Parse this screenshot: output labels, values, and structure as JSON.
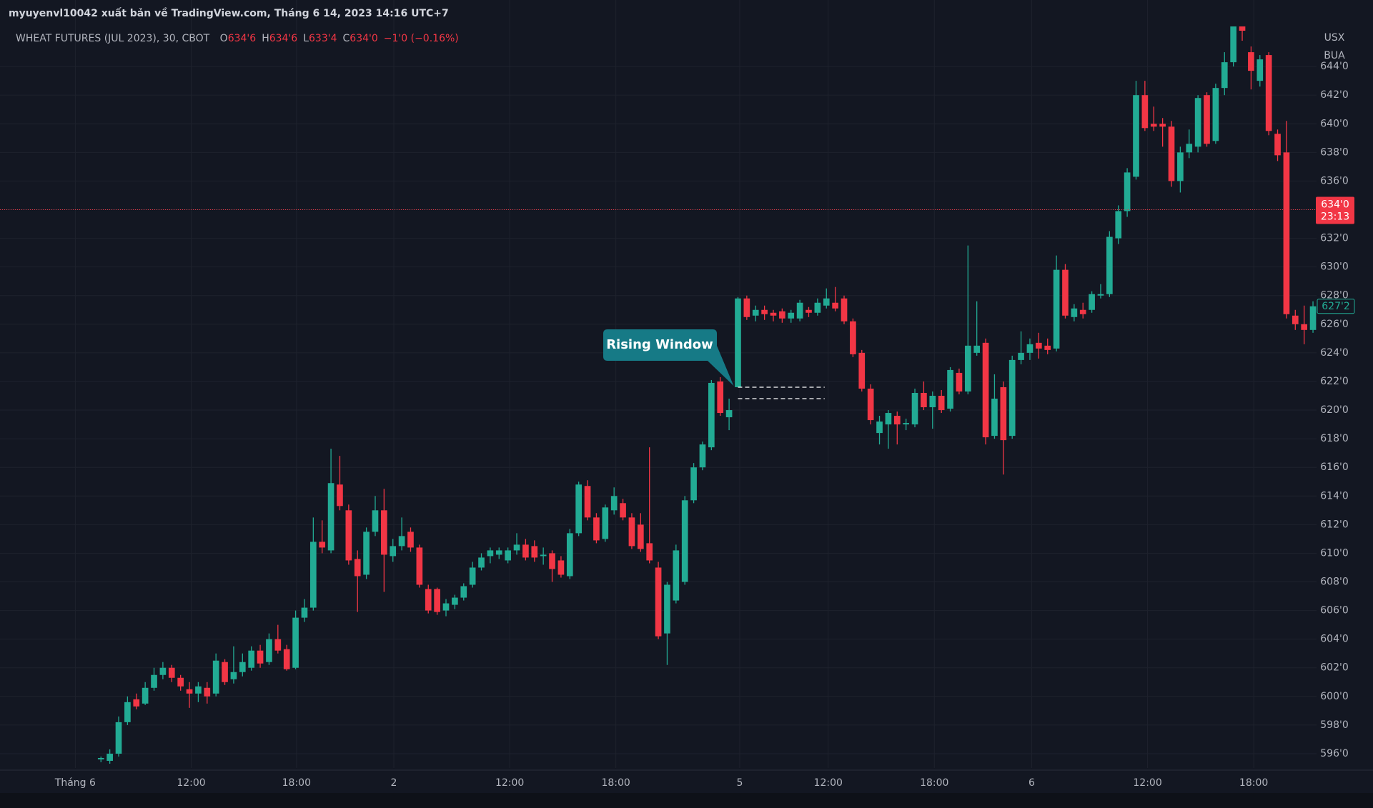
{
  "chart_data": {
    "type": "candlestick",
    "publisher": "myuyenvl10042 xuất bản về TradingView.com, Tháng 6 14, 2023 14:16 UTC+7",
    "title": "WHEAT FUTURES (JUL 2023), 30, CBOT",
    "legend_ohlc": [
      {
        "key": "O",
        "value": "634'6"
      },
      {
        "key": "H",
        "value": "634'6"
      },
      {
        "key": "L",
        "value": "633'4"
      },
      {
        "key": "C",
        "value": "634'0"
      }
    ],
    "change": "−1'0 (−0.16%)",
    "currency": "USX",
    "unit": "BUA",
    "up_color": "#22ab94",
    "down_color": "#f23645",
    "grid": true,
    "xlim": [
      -10.2,
      137.4
    ],
    "xticks": [
      {
        "value": -2.9,
        "label": "Tháng 6"
      },
      {
        "value": 10.2,
        "label": "12:00"
      },
      {
        "value": 22.1,
        "label": "18:00"
      },
      {
        "value": 33.1,
        "label": "2"
      },
      {
        "value": 46.2,
        "label": "12:00"
      },
      {
        "value": 58.2,
        "label": "18:00"
      },
      {
        "value": 72.2,
        "label": "5"
      },
      {
        "value": 82.2,
        "label": "12:00"
      },
      {
        "value": 94.2,
        "label": "18:00"
      },
      {
        "value": 105.2,
        "label": "6"
      },
      {
        "value": 118.3,
        "label": "12:00"
      },
      {
        "value": 130.3,
        "label": "18:00"
      }
    ],
    "ylim": [
      595.0,
      646.8
    ],
    "yticks": [
      {
        "value": 596,
        "label": "596'0"
      },
      {
        "value": 598,
        "label": "598'0"
      },
      {
        "value": 600,
        "label": "600'0"
      },
      {
        "value": 602,
        "label": "602'0"
      },
      {
        "value": 604,
        "label": "604'0"
      },
      {
        "value": 606,
        "label": "606'0"
      },
      {
        "value": 608,
        "label": "608'0"
      },
      {
        "value": 610,
        "label": "610'0"
      },
      {
        "value": 612,
        "label": "612'0"
      },
      {
        "value": 614,
        "label": "614'0"
      },
      {
        "value": 616,
        "label": "616'0"
      },
      {
        "value": 618,
        "label": "618'0"
      },
      {
        "value": 620,
        "label": "620'0"
      },
      {
        "value": 622,
        "label": "622'0"
      },
      {
        "value": 624,
        "label": "624'0"
      },
      {
        "value": 626,
        "label": "626'0"
      },
      {
        "value": 628,
        "label": "628'0"
      },
      {
        "value": 630,
        "label": "630'0"
      },
      {
        "value": 632,
        "label": "632'0"
      },
      {
        "value": 634,
        "label": "634'0"
      },
      {
        "value": 636,
        "label": "636'0"
      },
      {
        "value": 638,
        "label": "638'0"
      },
      {
        "value": 640,
        "label": "640'0"
      },
      {
        "value": 642,
        "label": "642'0"
      },
      {
        "value": 644,
        "label": "644'0"
      }
    ],
    "last_price": {
      "value": 634,
      "label": "634'0",
      "countdown": "23:13"
    },
    "last_close": {
      "value": 627.25,
      "label": "627'2"
    },
    "annotation": {
      "text": "Rising Window",
      "upper": 621.6,
      "lower": 620.8,
      "from": 72,
      "to": 81.8
    },
    "candles": [
      [
        595.6,
        595.8,
        595.4,
        595.7
      ],
      [
        595.5,
        596.3,
        595.3,
        596.0
      ],
      [
        596.0,
        598.6,
        595.8,
        598.2
      ],
      [
        598.2,
        600.0,
        598.0,
        599.6
      ],
      [
        599.8,
        600.2,
        599.1,
        599.3
      ],
      [
        599.5,
        601.0,
        599.4,
        600.6
      ],
      [
        600.6,
        602.0,
        600.4,
        601.5
      ],
      [
        601.5,
        602.4,
        601.2,
        602.0
      ],
      [
        602.0,
        602.2,
        601.0,
        601.3
      ],
      [
        601.3,
        601.5,
        600.4,
        600.7
      ],
      [
        600.5,
        601.0,
        599.2,
        600.2
      ],
      [
        600.2,
        601.0,
        599.6,
        600.7
      ],
      [
        600.6,
        601.0,
        599.5,
        600.0
      ],
      [
        600.2,
        603.0,
        600.0,
        602.5
      ],
      [
        602.4,
        602.6,
        600.8,
        601.0
      ],
      [
        601.2,
        603.5,
        600.9,
        601.7
      ],
      [
        601.7,
        603.0,
        601.4,
        602.4
      ],
      [
        602.0,
        603.5,
        601.8,
        603.2
      ],
      [
        603.2,
        603.6,
        602.0,
        602.3
      ],
      [
        602.4,
        604.4,
        602.2,
        604.0
      ],
      [
        604.0,
        605.0,
        603.0,
        603.2
      ],
      [
        603.3,
        603.6,
        601.8,
        601.9
      ],
      [
        602.0,
        606.0,
        601.9,
        605.5
      ],
      [
        605.5,
        606.8,
        605.2,
        606.2
      ],
      [
        606.2,
        612.5,
        606.0,
        610.8
      ],
      [
        610.8,
        612.3,
        610.0,
        610.4
      ],
      [
        610.2,
        617.3,
        610.0,
        614.9
      ],
      [
        614.8,
        616.8,
        613.0,
        613.3
      ],
      [
        613.0,
        613.4,
        609.2,
        609.5
      ],
      [
        609.6,
        610.2,
        605.9,
        608.4
      ],
      [
        608.5,
        611.8,
        608.2,
        611.5
      ],
      [
        611.5,
        614.0,
        611.2,
        613.0
      ],
      [
        613.0,
        614.5,
        607.3,
        609.9
      ],
      [
        609.8,
        611.0,
        609.4,
        610.5
      ],
      [
        610.5,
        612.5,
        610.2,
        611.2
      ],
      [
        611.5,
        611.8,
        610.1,
        610.4
      ],
      [
        610.4,
        610.6,
        607.6,
        607.8
      ],
      [
        607.5,
        607.8,
        605.8,
        606.0
      ],
      [
        607.5,
        607.6,
        605.7,
        605.9
      ],
      [
        606.0,
        606.8,
        605.6,
        606.5
      ],
      [
        606.4,
        607.1,
        606.1,
        606.9
      ],
      [
        606.9,
        607.9,
        606.7,
        607.7
      ],
      [
        607.8,
        609.4,
        607.6,
        609.0
      ],
      [
        609.0,
        610.0,
        608.8,
        609.7
      ],
      [
        609.8,
        610.4,
        609.3,
        610.2
      ],
      [
        609.9,
        610.4,
        609.6,
        610.2
      ],
      [
        609.5,
        610.4,
        609.3,
        610.2
      ],
      [
        610.2,
        611.4,
        609.9,
        610.6
      ],
      [
        610.6,
        611.0,
        609.5,
        609.7
      ],
      [
        610.5,
        610.9,
        609.4,
        609.7
      ],
      [
        609.8,
        610.4,
        609.2,
        609.9
      ],
      [
        610.0,
        610.2,
        608.0,
        608.9
      ],
      [
        609.5,
        609.8,
        608.3,
        608.5
      ],
      [
        608.4,
        611.7,
        608.2,
        611.4
      ],
      [
        611.4,
        615.0,
        611.2,
        614.8
      ],
      [
        614.7,
        615.1,
        612.3,
        612.5
      ],
      [
        612.5,
        612.8,
        610.7,
        610.9
      ],
      [
        611.0,
        613.4,
        610.8,
        613.2
      ],
      [
        613.0,
        614.6,
        612.7,
        614.0
      ],
      [
        613.5,
        613.8,
        612.3,
        612.5
      ],
      [
        612.5,
        612.8,
        610.3,
        610.5
      ],
      [
        612.0,
        612.8,
        610.1,
        610.3
      ],
      [
        610.7,
        617.4,
        609.3,
        609.5
      ],
      [
        609.0,
        609.4,
        604.0,
        604.2
      ],
      [
        604.4,
        608.0,
        602.2,
        607.8
      ],
      [
        606.7,
        610.6,
        606.5,
        610.2
      ],
      [
        608.0,
        614.0,
        607.8,
        613.7
      ],
      [
        613.7,
        616.3,
        613.5,
        616.0
      ],
      [
        616.0,
        617.8,
        615.8,
        617.6
      ],
      [
        617.4,
        622.1,
        617.2,
        621.9
      ],
      [
        622.0,
        622.3,
        619.6,
        619.8
      ],
      [
        619.5,
        620.8,
        618.6,
        620.0
      ],
      [
        621.6,
        627.9,
        621.6,
        627.8
      ],
      [
        627.8,
        628.0,
        626.3,
        626.5
      ],
      [
        626.6,
        627.3,
        626.2,
        627.0
      ],
      [
        627.0,
        627.3,
        626.3,
        626.7
      ],
      [
        626.8,
        627.0,
        626.2,
        626.6
      ],
      [
        626.9,
        627.1,
        626.1,
        626.4
      ],
      [
        626.4,
        627.0,
        626.1,
        626.8
      ],
      [
        626.4,
        627.7,
        626.2,
        627.5
      ],
      [
        627.0,
        627.2,
        626.5,
        626.8
      ],
      [
        626.8,
        627.8,
        626.6,
        627.5
      ],
      [
        627.3,
        628.5,
        627.1,
        627.8
      ],
      [
        627.5,
        628.6,
        626.9,
        627.1
      ],
      [
        627.8,
        628.0,
        626.0,
        626.2
      ],
      [
        626.2,
        626.4,
        623.7,
        623.9
      ],
      [
        624.0,
        624.2,
        621.3,
        621.5
      ],
      [
        621.5,
        621.8,
        619.0,
        619.3
      ],
      [
        618.4,
        619.6,
        617.6,
        619.2
      ],
      [
        619.0,
        620.0,
        617.3,
        619.8
      ],
      [
        619.6,
        619.9,
        617.6,
        619.0
      ],
      [
        619.0,
        619.4,
        618.6,
        619.1
      ],
      [
        619.0,
        621.5,
        618.8,
        621.2
      ],
      [
        621.2,
        622.0,
        620.0,
        620.2
      ],
      [
        620.2,
        621.3,
        618.7,
        621.0
      ],
      [
        621.0,
        621.4,
        619.8,
        620.0
      ],
      [
        620.1,
        623.0,
        619.9,
        622.8
      ],
      [
        622.6,
        622.9,
        621.1,
        621.3
      ],
      [
        621.3,
        631.5,
        621.1,
        624.5
      ],
      [
        624.0,
        627.6,
        623.8,
        624.5
      ],
      [
        624.7,
        625.0,
        617.6,
        618.1
      ],
      [
        618.2,
        622.5,
        618.0,
        620.8
      ],
      [
        621.6,
        622.0,
        615.5,
        617.9
      ],
      [
        618.2,
        623.8,
        618.0,
        623.5
      ],
      [
        623.5,
        625.5,
        623.2,
        624.0
      ],
      [
        624.0,
        625.0,
        623.5,
        624.6
      ],
      [
        624.7,
        625.4,
        623.6,
        624.3
      ],
      [
        624.5,
        625.0,
        623.9,
        624.2
      ],
      [
        624.3,
        630.8,
        624.1,
        629.8
      ],
      [
        629.8,
        630.2,
        626.4,
        626.6
      ],
      [
        626.5,
        627.4,
        626.2,
        627.1
      ],
      [
        627.0,
        627.5,
        626.4,
        626.7
      ],
      [
        627.0,
        628.3,
        626.8,
        628.1
      ],
      [
        628.0,
        628.8,
        627.8,
        628.1
      ],
      [
        628.1,
        632.5,
        627.9,
        632.1
      ],
      [
        632.0,
        634.3,
        631.6,
        633.9
      ],
      [
        633.9,
        636.9,
        633.5,
        636.6
      ],
      [
        636.3,
        643.0,
        636.1,
        642.0
      ],
      [
        642.0,
        643.0,
        639.5,
        639.7
      ],
      [
        640.0,
        641.2,
        639.5,
        639.8
      ],
      [
        640.0,
        640.4,
        638.4,
        639.8
      ],
      [
        639.8,
        640.2,
        635.6,
        636.0
      ],
      [
        636.0,
        638.4,
        635.2,
        638.0
      ],
      [
        638.0,
        639.6,
        637.6,
        638.6
      ],
      [
        638.4,
        642.0,
        638.0,
        641.8
      ],
      [
        642.0,
        642.2,
        638.4,
        638.6
      ],
      [
        638.8,
        642.8,
        638.6,
        642.5
      ],
      [
        642.5,
        645.0,
        642.0,
        644.3
      ],
      [
        644.3,
        646.8,
        644.0,
        646.8
      ],
      [
        646.8,
        646.8,
        645.8,
        646.5
      ],
      [
        645.0,
        645.4,
        642.4,
        643.7
      ],
      [
        643.0,
        644.8,
        642.6,
        644.5
      ],
      [
        644.8,
        645.0,
        639.2,
        639.5
      ],
      [
        639.3,
        639.6,
        637.4,
        637.8
      ],
      [
        638.0,
        640.2,
        626.4,
        626.7
      ],
      [
        626.6,
        627.0,
        625.6,
        626.0
      ],
      [
        626.0,
        627.3,
        624.6,
        625.6
      ],
      [
        625.6,
        627.6,
        625.4,
        627.25
      ]
    ]
  }
}
